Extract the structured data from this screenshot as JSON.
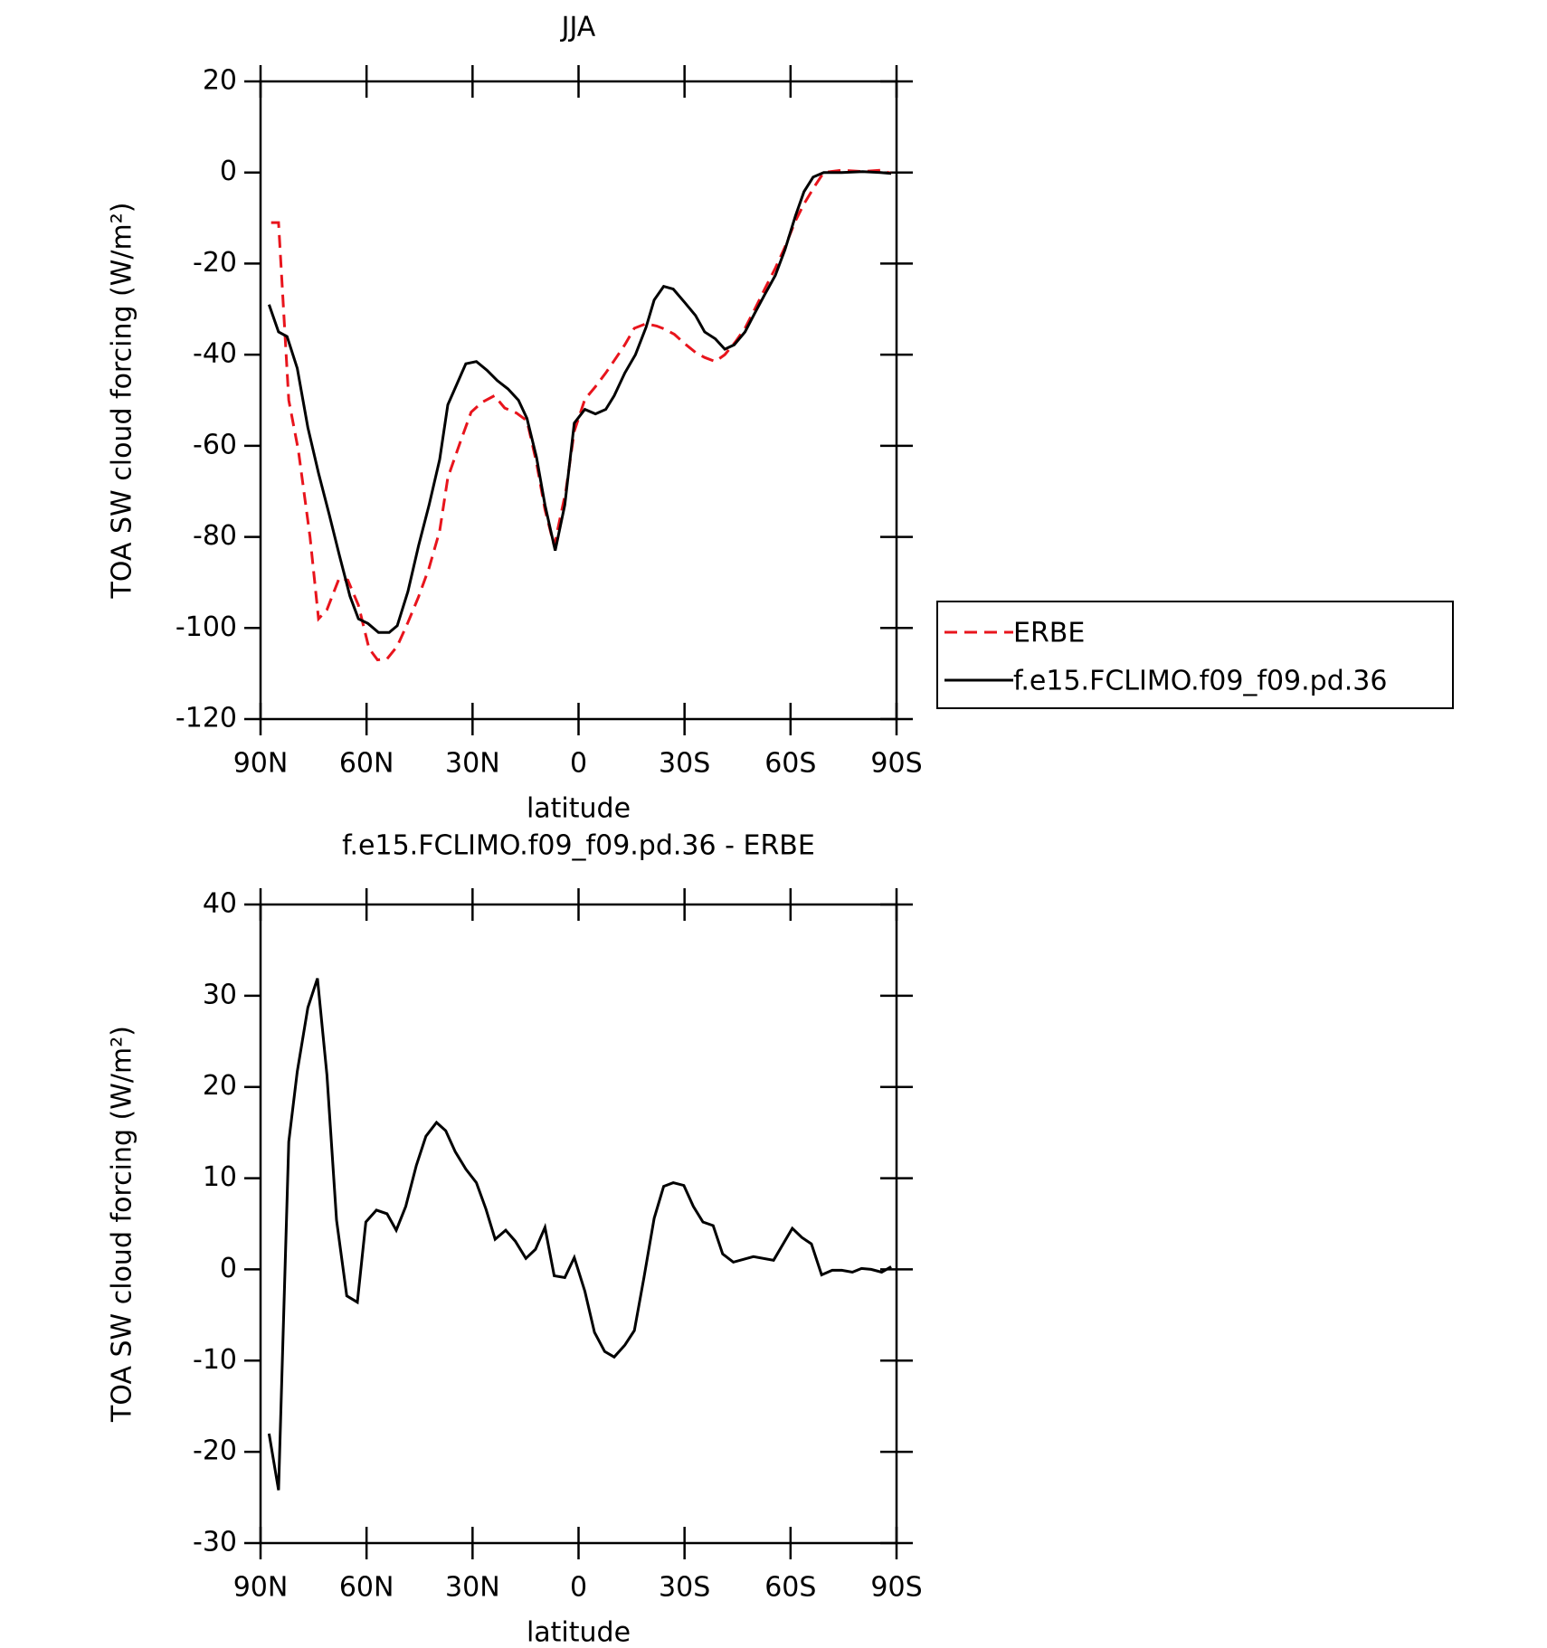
{
  "chart_data": [
    {
      "type": "line",
      "title": "JJA",
      "xlabel": "latitude",
      "ylabel": "TOA SW cloud forcing (W/m²)",
      "xlim": [
        90,
        -90
      ],
      "xticks": [
        {
          "value": 90,
          "label": "90N"
        },
        {
          "value": 60,
          "label": "60N"
        },
        {
          "value": 30,
          "label": "30N"
        },
        0,
        {
          "value": -30,
          "label": "30S"
        },
        {
          "value": -60,
          "label": "60S"
        },
        {
          "value": -90,
          "label": "90S"
        }
      ],
      "ylim": [
        -120,
        20
      ],
      "yticks": [
        -120,
        -100,
        -80,
        -60,
        -40,
        -20,
        0,
        20
      ],
      "legend": "right",
      "series": [
        {
          "name": "ERBE",
          "color": "#e8141c",
          "dash": true,
          "x": [
            87,
            84.9,
            82,
            79.3,
            76,
            73.6,
            71.2,
            67.7,
            65.3,
            62.3,
            59.3,
            56.9,
            54.2,
            51.3,
            48.3,
            45.3,
            42.3,
            39.3,
            37,
            33.4,
            30.4,
            27.4,
            23.8,
            20.9,
            17.6,
            14.6,
            11.9,
            9.5,
            6.9,
            3.6,
            1.2,
            -1.8,
            -4.8,
            -7.7,
            -10.1,
            -13.1,
            -15.8,
            -19.1,
            -22.1,
            -24.4,
            -27.1,
            -30.1,
            -33.1,
            -35.7,
            -38.7,
            -41.4,
            -44.4,
            -47.1,
            -50,
            -52.7,
            -55.7,
            -58.4,
            -61.4,
            -63.8,
            -67,
            -69.4,
            -74.5,
            -80.4,
            -85.5,
            -88.5
          ],
          "values": [
            -11,
            -11,
            -50,
            -61,
            -80,
            -98,
            -96,
            -89,
            -89.5,
            -95,
            -104.5,
            -107,
            -106.8,
            -104,
            -98.8,
            -93.2,
            -86.8,
            -78.7,
            -67,
            -59,
            -52.6,
            -50.5,
            -49,
            -51.7,
            -52.8,
            -54.5,
            -63.7,
            -74,
            -82,
            -70,
            -56.8,
            -49.8,
            -47,
            -44,
            -41.3,
            -37.8,
            -34.2,
            -33.2,
            -33.7,
            -34.4,
            -35.5,
            -37.6,
            -39.5,
            -40.6,
            -41.5,
            -40,
            -37.2,
            -34.2,
            -29.8,
            -25.6,
            -21,
            -16.4,
            -10.6,
            -6.9,
            -2.8,
            0,
            0.5,
            0.2,
            0.5,
            -0.2
          ]
        },
        {
          "name": "f.e15.FCLIMO.f09_f09.pd.36",
          "color": "#000000",
          "dash": false,
          "x": [
            87.6,
            84.9,
            82.5,
            79.6,
            76.6,
            73.6,
            70.6,
            67.7,
            64.7,
            62.3,
            59.6,
            56.6,
            53.6,
            51.3,
            48.3,
            45.3,
            42.3,
            39.3,
            37,
            31.9,
            28.9,
            25.9,
            23,
            20,
            17,
            14.6,
            11.9,
            9.5,
            6.6,
            3.9,
            1.2,
            -1.8,
            -4.8,
            -7.7,
            -10.1,
            -13.1,
            -16.1,
            -19.1,
            -21.4,
            -24.1,
            -26.8,
            -30.1,
            -33.1,
            -35.7,
            -38.7,
            -41.4,
            -44.1,
            -47.1,
            -49.8,
            -52.7,
            -55.7,
            -58.4,
            -61.4,
            -63.8,
            -66.4,
            -69.4,
            -74.5,
            -80.4,
            -85.5,
            -88.5
          ],
          "values": [
            -29,
            -35,
            -36,
            -43,
            -56,
            -66,
            -75,
            -84,
            -93,
            -98,
            -99,
            -101,
            -101,
            -99.5,
            -92,
            -82,
            -73,
            -63,
            -51,
            -42,
            -41.5,
            -43.4,
            -45.7,
            -47.5,
            -50,
            -54,
            -62.5,
            -73,
            -83,
            -73,
            -55,
            -52,
            -53,
            -52,
            -49,
            -44,
            -40,
            -34,
            -28,
            -25,
            -25.6,
            -28.6,
            -31.4,
            -35,
            -36.5,
            -38.8,
            -37.8,
            -35,
            -31,
            -26.8,
            -22.6,
            -17,
            -9.5,
            -4.2,
            -1,
            0,
            0,
            0.2,
            0,
            -0.2
          ]
        }
      ]
    },
    {
      "type": "line",
      "title": "f.e15.FCLIMO.f09_f09.pd.36 - ERBE",
      "xlabel": "latitude",
      "ylabel": "TOA SW cloud forcing (W/m²)",
      "xlim": [
        90,
        -90
      ],
      "xticks": [
        {
          "value": 90,
          "label": "90N"
        },
        {
          "value": 60,
          "label": "60N"
        },
        {
          "value": 30,
          "label": "30N"
        },
        0,
        {
          "value": -30,
          "label": "30S"
        },
        {
          "value": -60,
          "label": "60S"
        },
        {
          "value": -90,
          "label": "90S"
        }
      ],
      "ylim": [
        -30,
        40
      ],
      "yticks": [
        -30,
        -20,
        -10,
        0,
        10,
        20,
        30,
        40
      ],
      "series": [
        {
          "color": "#000000",
          "dash": false,
          "x": [
            87.6,
            84.9,
            82,
            79.6,
            76.6,
            73.9,
            71.2,
            68.5,
            65.6,
            62.6,
            60.2,
            57.2,
            54.2,
            51.6,
            48.9,
            45.9,
            43.2,
            40.2,
            37.6,
            34.9,
            31.9,
            28.9,
            26.2,
            23.6,
            20.6,
            17.9,
            14.9,
            12.2,
            9.5,
            6.9,
            3.9,
            1.2,
            -1.8,
            -4.5,
            -7.4,
            -10.1,
            -13.1,
            -15.8,
            -18.5,
            -21.4,
            -24.1,
            -26.8,
            -29.8,
            -32.5,
            -35.2,
            -38.1,
            -40.8,
            -43.8,
            -49.5,
            -55.2,
            -60.5,
            -63.2,
            -65.9,
            -68.8,
            -71.8,
            -74.5,
            -77.5,
            -80.1,
            -82.8,
            -85.8,
            -88.5
          ],
          "values": [
            -18,
            -24.2,
            14,
            21.7,
            28.7,
            31.9,
            21.3,
            5.4,
            -2.9,
            -3.6,
            5.2,
            6.5,
            6.1,
            4.3,
            6.9,
            11.4,
            14.6,
            16.1,
            15.2,
            12.9,
            11,
            9.5,
            6.6,
            3.3,
            4.3,
            3.1,
            1.2,
            2.2,
            4.6,
            -0.7,
            -0.9,
            1.3,
            -2.4,
            -6.9,
            -9,
            -9.6,
            -8.3,
            -6.7,
            -0.9,
            5.6,
            9.1,
            9.5,
            9.2,
            6.9,
            5.2,
            4.8,
            1.7,
            0.8,
            1.4,
            1,
            4.5,
            3.5,
            2.8,
            -0.6,
            -0.1,
            -0.1,
            -0.3,
            0.1,
            0,
            -0.3,
            0.3
          ]
        }
      ]
    }
  ]
}
